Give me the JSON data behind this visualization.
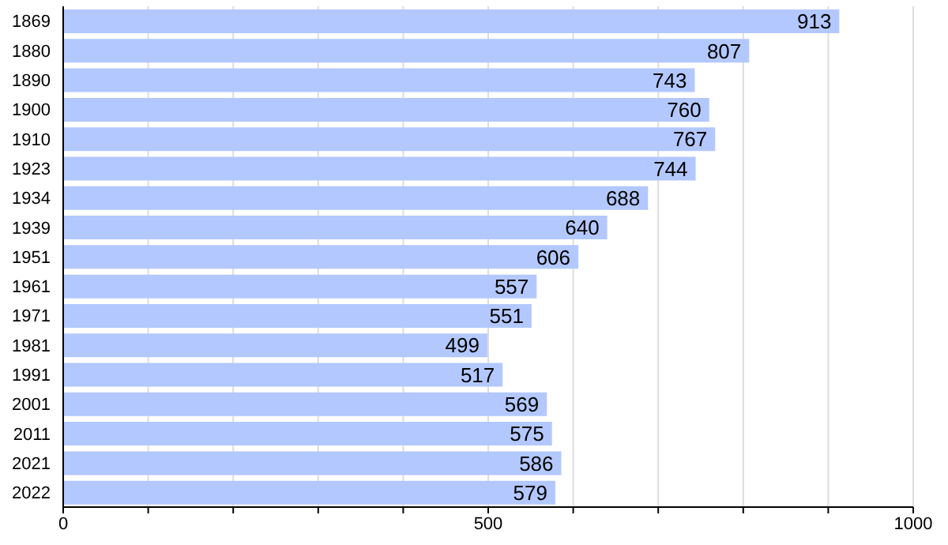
{
  "chart_data": {
    "type": "bar",
    "orientation": "horizontal",
    "categories": [
      "1869",
      "1880",
      "1890",
      "1900",
      "1910",
      "1923",
      "1934",
      "1939",
      "1951",
      "1961",
      "1971",
      "1981",
      "1991",
      "2001",
      "2011",
      "2021",
      "2022"
    ],
    "values": [
      913,
      807,
      743,
      760,
      767,
      744,
      688,
      640,
      606,
      557,
      551,
      499,
      517,
      569,
      575,
      586,
      579
    ],
    "color": "#b3c8ff",
    "xlim": [
      0,
      1000
    ],
    "xticks": [
      0,
      {
        "value": 100,
        "label": null
      },
      {
        "value": 200,
        "label": null
      },
      {
        "value": 300,
        "label": null
      },
      {
        "value": 400,
        "label": null
      },
      500,
      {
        "value": 600,
        "label": null
      },
      {
        "value": 700,
        "label": null
      },
      {
        "value": 800,
        "label": null
      },
      {
        "value": 900,
        "label": null
      },
      1000
    ],
    "grid": "x",
    "data_labels": true
  }
}
